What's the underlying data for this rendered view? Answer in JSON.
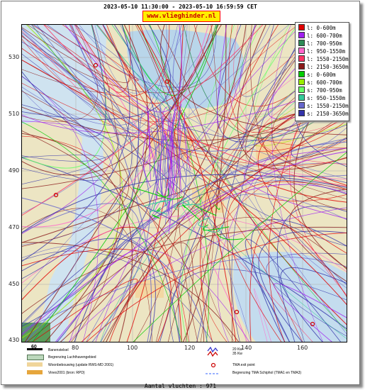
{
  "title": "2023-05-10 11:30:00 - 2023-05-10 16:59:59 CET",
  "site": "www.vlieghinder.nl",
  "axes": {
    "x_ticks": [
      "80",
      "100",
      "120",
      "140",
      "160"
    ],
    "y_ticks": [
      "530",
      "510",
      "490",
      "470",
      "450",
      "430"
    ]
  },
  "legend": [
    {
      "label": "l: 0-600m",
      "color": "#e00000"
    },
    {
      "label": "l: 600-700m",
      "color": "#a020f0"
    },
    {
      "label": "l: 700-950m",
      "color": "#2e8b57"
    },
    {
      "label": "l: 950-1550m",
      "color": "#ff66cc"
    },
    {
      "label": "l: 1550-2150m",
      "color": "#ff3366"
    },
    {
      "label": "l: 2150-3650m",
      "color": "#8b1a1a"
    },
    {
      "label": "s: 0-600m",
      "color": "#00cc00"
    },
    {
      "label": "s: 600-700m",
      "color": "#99ee00"
    },
    {
      "label": "s: 700-950m",
      "color": "#66ff66"
    },
    {
      "label": "s: 950-1550m",
      "color": "#33cc99"
    },
    {
      "label": "s: 1550-2150m",
      "color": "#6666cc"
    },
    {
      "label": "s: 2150-3650m",
      "color": "#3333aa"
    }
  ],
  "map_legend": {
    "scale_label": "60",
    "runways": "Banenstelsel",
    "airport_boundary": "Begrenzing Luchthavengebied",
    "housing": "Woonbebouwing (update RWS-MD 2001)",
    "vinex": "Vinex2001 (bron: RPD)",
    "wind_label_1": "20 Kw",
    "wind_label_2": "35 Kw",
    "tma_exit": "TMA exit point",
    "tma_boundary": "Begrenzing TMA Schiphol  (TMA1 en TMA3)"
  },
  "flight_count_label": "Aantal vluchten : 971"
}
